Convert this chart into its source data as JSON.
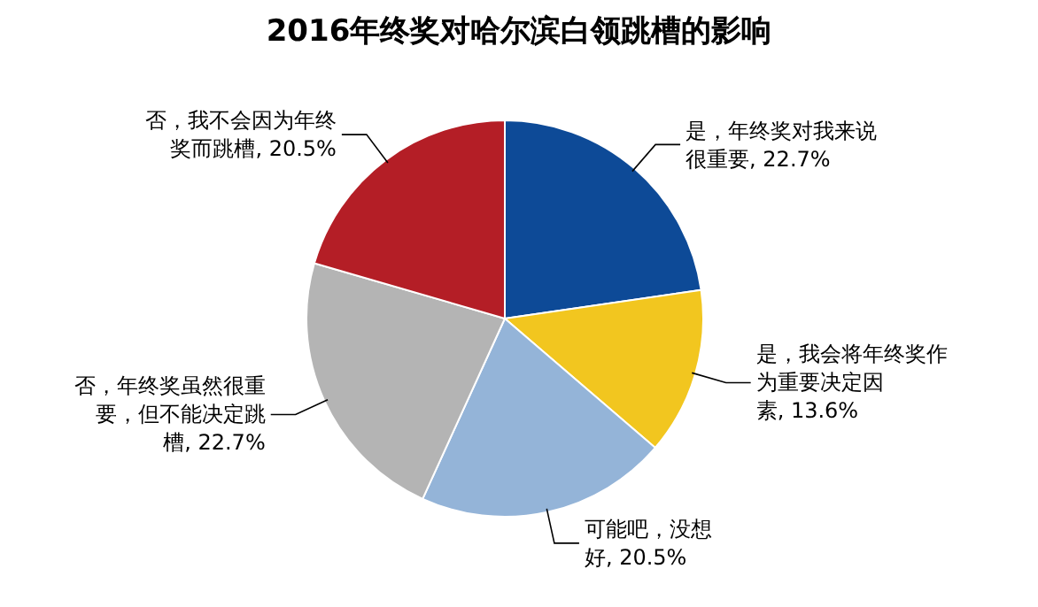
{
  "chart_data": {
    "type": "pie",
    "title": "2016年终奖对哈尔滨白领跳槽的影响",
    "categories": [
      "是，年终奖对我来说很重要",
      "是，我会将年终奖作为重要决定因素",
      "可能吧，没想好",
      "否，年终奖虽然很重要，但不能决定跳槽",
      "否，我不会因为年终奖而跳槽"
    ],
    "values": [
      22.7,
      13.6,
      20.5,
      22.7,
      20.5
    ],
    "value_labels": [
      ", 22.7%",
      ", 13.6%",
      ", 20.5%",
      ", 22.7%",
      ", 20.5%"
    ],
    "colors": [
      "#0d4a97",
      "#f2c61f",
      "#94b4d8",
      "#b4b4b4",
      "#b41e26"
    ]
  }
}
